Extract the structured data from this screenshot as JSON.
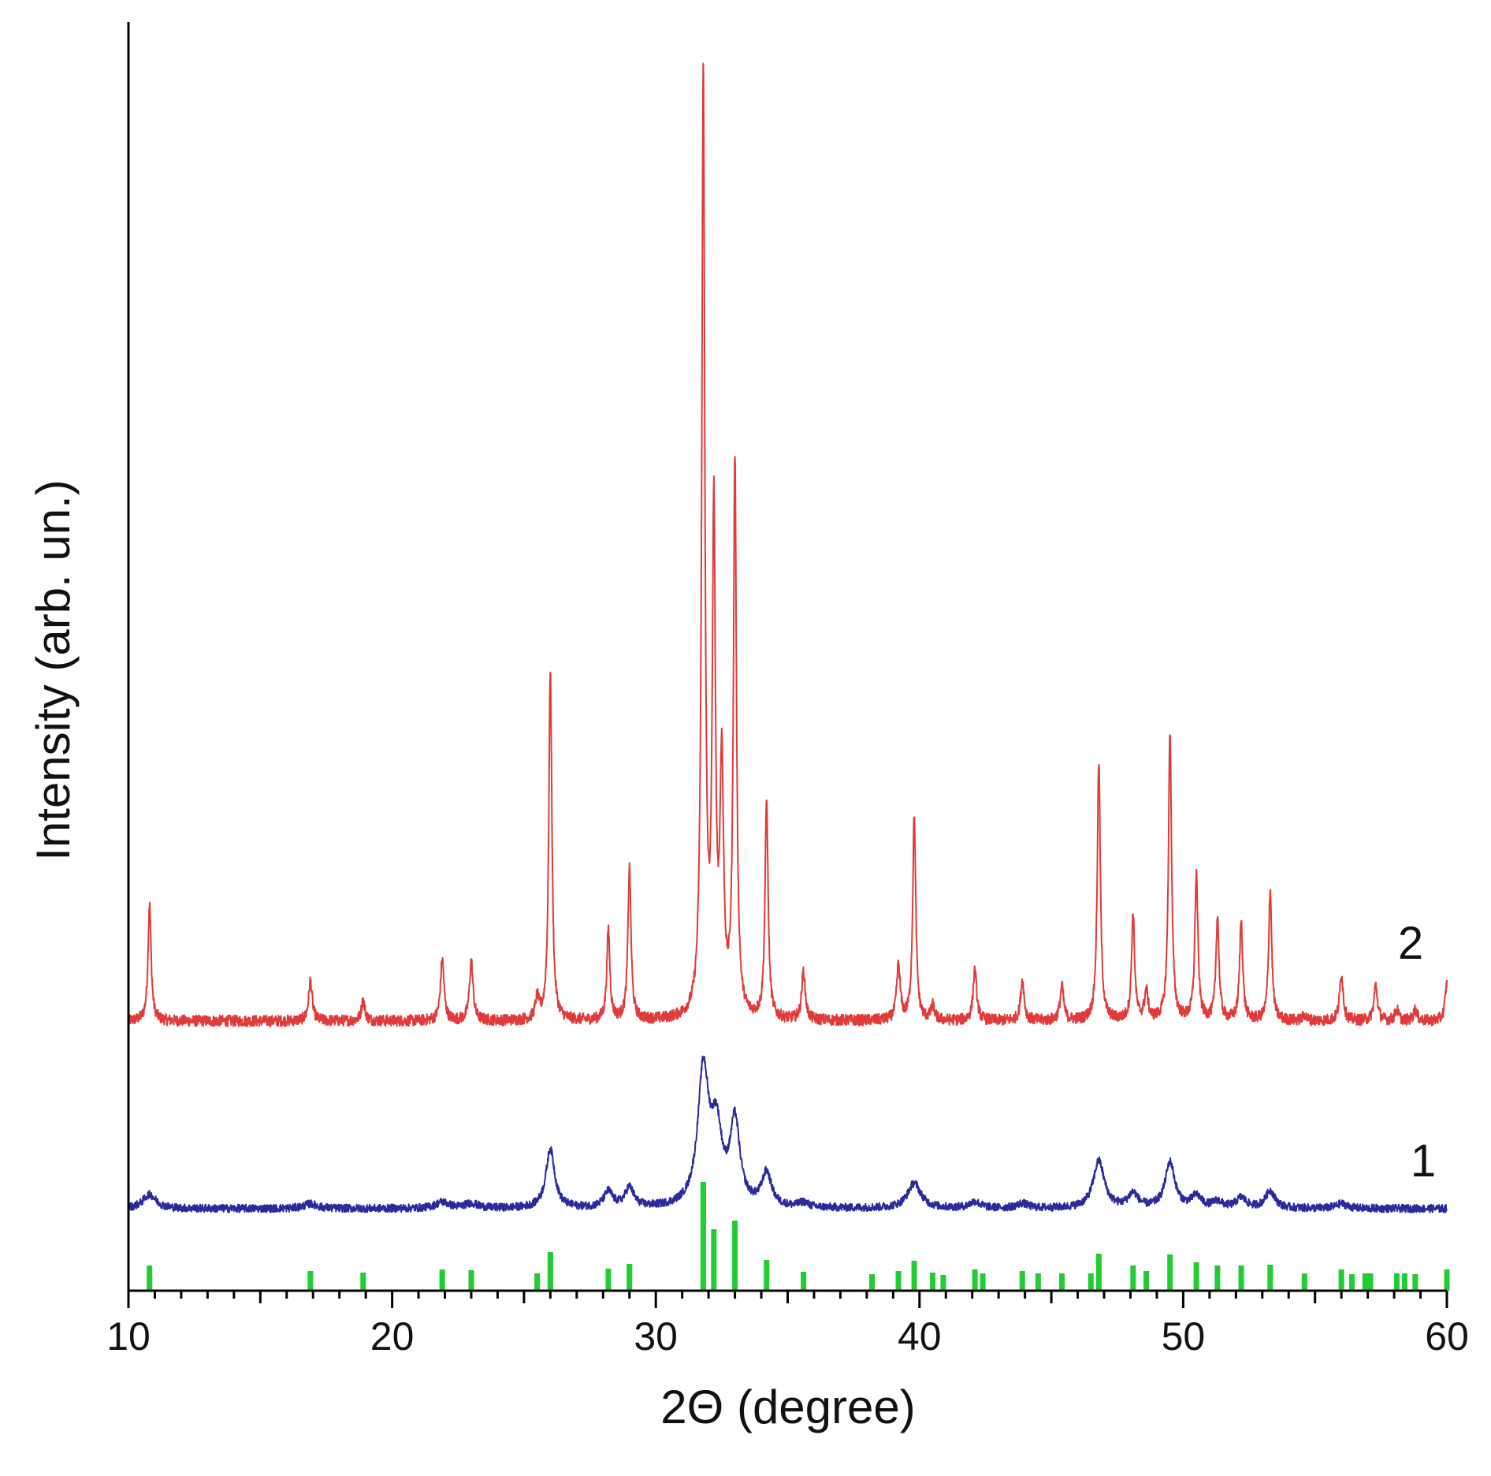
{
  "chart_data": {
    "type": "line",
    "title": "",
    "xlabel": "2Θ (degree)",
    "ylabel": "Intensity (arb. un.)",
    "xlim": [
      10,
      60
    ],
    "xticks": [
      10,
      20,
      30,
      40,
      50,
      60
    ],
    "y_ticks_shown": false,
    "grid": false,
    "legend": "none",
    "colors": {
      "pattern2": "#e03a3a",
      "pattern1": "#2a2a9c",
      "reference": "#22cc33",
      "axis": "#000000"
    },
    "series": [
      {
        "label": "2",
        "color": "#e03a3a",
        "baseline": 0,
        "noise": 0.006,
        "peaks": [
          [
            10.8,
            0.125,
            0.07
          ],
          [
            16.9,
            0.043,
            0.08
          ],
          [
            18.9,
            0.022,
            0.08
          ],
          [
            21.9,
            0.066,
            0.08
          ],
          [
            23.0,
            0.064,
            0.08
          ],
          [
            25.5,
            0.022,
            0.08
          ],
          [
            26.0,
            0.375,
            0.07
          ],
          [
            28.2,
            0.096,
            0.07
          ],
          [
            29.0,
            0.162,
            0.07
          ],
          [
            31.8,
            1.0,
            0.07
          ],
          [
            32.2,
            0.526,
            0.07
          ],
          [
            32.5,
            0.26,
            0.08
          ],
          [
            33.0,
            0.591,
            0.07
          ],
          [
            34.2,
            0.233,
            0.07
          ],
          [
            35.6,
            0.052,
            0.08
          ],
          [
            39.2,
            0.058,
            0.08
          ],
          [
            39.8,
            0.218,
            0.07
          ],
          [
            40.5,
            0.015,
            0.08
          ],
          [
            42.1,
            0.054,
            0.08
          ],
          [
            43.9,
            0.043,
            0.08
          ],
          [
            45.4,
            0.037,
            0.08
          ],
          [
            46.8,
            0.275,
            0.07
          ],
          [
            48.1,
            0.113,
            0.07
          ],
          [
            48.6,
            0.03,
            0.08
          ],
          [
            49.5,
            0.308,
            0.07
          ],
          [
            50.5,
            0.156,
            0.07
          ],
          [
            51.3,
            0.11,
            0.07
          ],
          [
            52.2,
            0.107,
            0.07
          ],
          [
            53.3,
            0.14,
            0.07
          ],
          [
            54.6,
            0.006,
            0.08
          ],
          [
            56.0,
            0.05,
            0.08
          ],
          [
            57.3,
            0.038,
            0.08
          ],
          [
            58.1,
            0.012,
            0.08
          ],
          [
            58.8,
            0.012,
            0.08
          ],
          [
            60.0,
            0.04,
            0.08
          ]
        ]
      },
      {
        "label": "1",
        "color": "#2a2a9c",
        "baseline": 0,
        "noise": 0.005,
        "peaks": [
          [
            10.8,
            0.018,
            0.3
          ],
          [
            16.9,
            0.006,
            0.3
          ],
          [
            21.9,
            0.008,
            0.3
          ],
          [
            23.0,
            0.006,
            0.3
          ],
          [
            26.0,
            0.075,
            0.2
          ],
          [
            28.2,
            0.02,
            0.2
          ],
          [
            29.0,
            0.025,
            0.2
          ],
          [
            31.8,
            0.17,
            0.25
          ],
          [
            32.3,
            0.09,
            0.25
          ],
          [
            33.0,
            0.105,
            0.22
          ],
          [
            34.2,
            0.042,
            0.22
          ],
          [
            35.6,
            0.006,
            0.2
          ],
          [
            39.8,
            0.032,
            0.3
          ],
          [
            42.1,
            0.008,
            0.25
          ],
          [
            43.9,
            0.006,
            0.25
          ],
          [
            46.8,
            0.06,
            0.25
          ],
          [
            48.1,
            0.018,
            0.22
          ],
          [
            49.5,
            0.058,
            0.22
          ],
          [
            50.5,
            0.015,
            0.22
          ],
          [
            51.3,
            0.008,
            0.22
          ],
          [
            52.2,
            0.013,
            0.22
          ],
          [
            53.3,
            0.022,
            0.22
          ],
          [
            56.0,
            0.006,
            0.25
          ]
        ]
      }
    ],
    "reference_lines": {
      "color": "#22cc33",
      "positions": [
        [
          10.8,
          0.032
        ],
        [
          16.9,
          0.025
        ],
        [
          18.9,
          0.023
        ],
        [
          21.9,
          0.027
        ],
        [
          23.0,
          0.026
        ],
        [
          25.5,
          0.022
        ],
        [
          26.0,
          0.049
        ],
        [
          28.2,
          0.028
        ],
        [
          29.0,
          0.034
        ],
        [
          31.8,
          0.138
        ],
        [
          32.2,
          0.078
        ],
        [
          33.0,
          0.089
        ],
        [
          34.2,
          0.039
        ],
        [
          35.6,
          0.024
        ],
        [
          38.2,
          0.021
        ],
        [
          39.2,
          0.025
        ],
        [
          39.8,
          0.038
        ],
        [
          40.5,
          0.023
        ],
        [
          40.9,
          0.02
        ],
        [
          42.1,
          0.027
        ],
        [
          42.4,
          0.022
        ],
        [
          43.9,
          0.025
        ],
        [
          44.5,
          0.022
        ],
        [
          45.4,
          0.022
        ],
        [
          46.5,
          0.022
        ],
        [
          46.8,
          0.047
        ],
        [
          48.1,
          0.032
        ],
        [
          48.6,
          0.025
        ],
        [
          49.5,
          0.046
        ],
        [
          50.5,
          0.036
        ],
        [
          51.3,
          0.032
        ],
        [
          52.2,
          0.032
        ],
        [
          53.3,
          0.033
        ],
        [
          54.6,
          0.022
        ],
        [
          56.0,
          0.027
        ],
        [
          56.4,
          0.021
        ],
        [
          56.9,
          0.022
        ],
        [
          57.1,
          0.022
        ],
        [
          58.1,
          0.022
        ],
        [
          58.4,
          0.022
        ],
        [
          58.8,
          0.021
        ],
        [
          60.0,
          0.027
        ]
      ]
    }
  }
}
